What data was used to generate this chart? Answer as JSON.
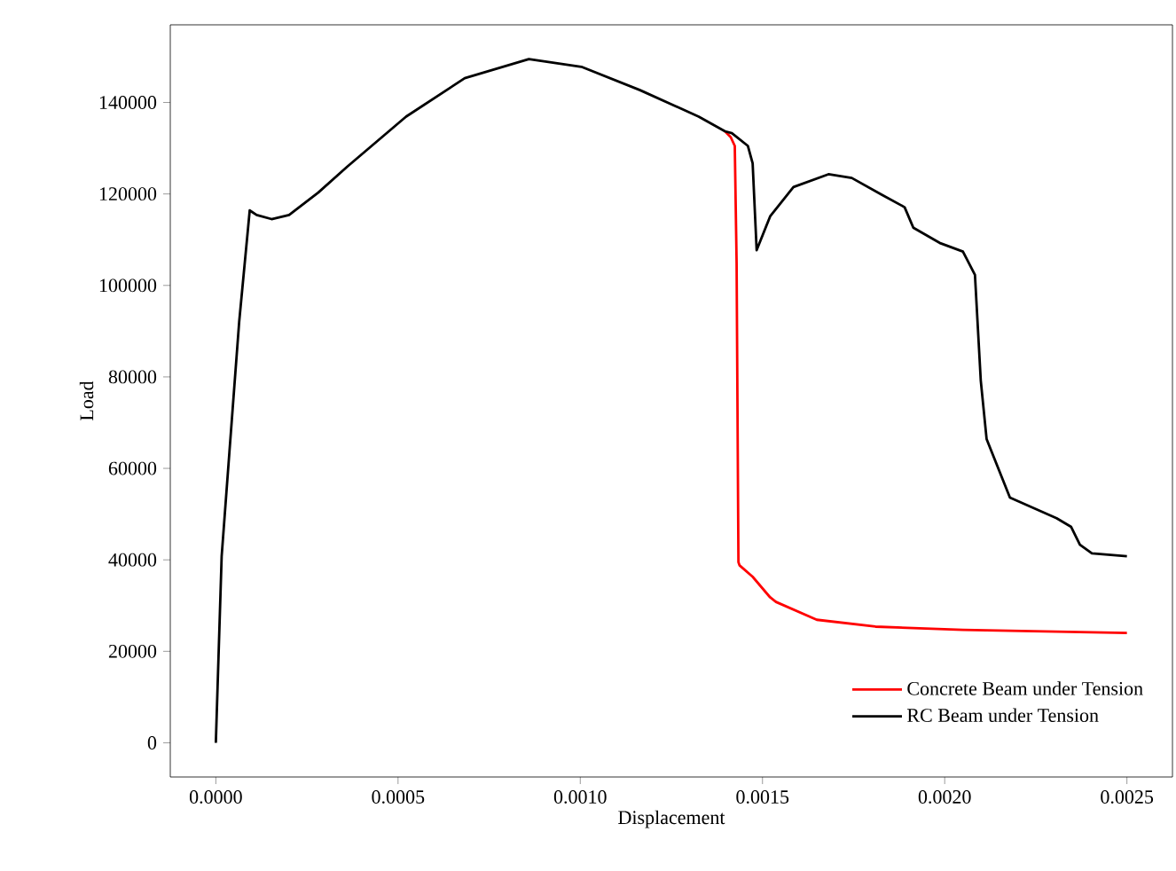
{
  "chart_data": {
    "type": "line",
    "xlabel": "Displacement",
    "ylabel": "Load",
    "xlim": [
      -0.000125,
      0.002625
    ],
    "ylim": [
      -7475,
      156975
    ],
    "xticks": [
      {
        "value": 0,
        "label": "0.0000"
      },
      {
        "value": 0.0005,
        "label": "0.0005"
      },
      {
        "value": 0.001,
        "label": "0.0010"
      },
      {
        "value": 0.0015,
        "label": "0.0015"
      },
      {
        "value": 0.002,
        "label": "0.0020"
      },
      {
        "value": 0.0025,
        "label": "0.0025"
      }
    ],
    "yticks": [
      0,
      20000,
      40000,
      60000,
      80000,
      100000,
      120000,
      140000
    ],
    "legend": "bottom right",
    "grid": false,
    "marker": "none",
    "line_style": "solid",
    "series": [
      {
        "name": "Concrete Beam under Tension",
        "color": "#ff0000",
        "x": [
          0.001397,
          0.001413,
          0.001424,
          0.001429,
          0.001434,
          0.001437,
          0.001473,
          0.001521,
          0.001537,
          0.001649,
          0.00181,
          0.00205,
          0.0025
        ],
        "values": [
          133700,
          132400,
          130500,
          104900,
          39500,
          38800,
          36300,
          31800,
          30800,
          26900,
          25400,
          24700,
          24000
        ]
      },
      {
        "name": "RC Beam under Tension",
        "color": "#000000",
        "x": [
          0,
          1.6e-05,
          4e-05,
          6.4e-05,
          9.3e-05,
          0.000112,
          0.000153,
          0.000201,
          0.000281,
          0.000361,
          0.000522,
          0.000683,
          0.000859,
          0.001003,
          0.001164,
          0.001325,
          0.001397,
          0.001416,
          0.00146,
          0.001473,
          0.001484,
          0.001521,
          0.001585,
          0.001681,
          0.001745,
          0.001826,
          0.00189,
          0.001914,
          0.001986,
          0.00205,
          0.002083,
          0.002099,
          0.002115,
          0.002179,
          0.002307,
          0.002347,
          0.002371,
          0.002404,
          0.0025
        ],
        "values": [
          0,
          40800,
          66500,
          92000,
          116400,
          115400,
          114500,
          115400,
          120300,
          126000,
          136900,
          145300,
          149500,
          147800,
          142700,
          136900,
          133700,
          133300,
          130500,
          126700,
          107700,
          115100,
          121500,
          124300,
          123500,
          119900,
          117100,
          112600,
          109300,
          107400,
          102300,
          79200,
          66400,
          53600,
          49100,
          47200,
          43300,
          41400,
          40800
        ]
      }
    ]
  }
}
